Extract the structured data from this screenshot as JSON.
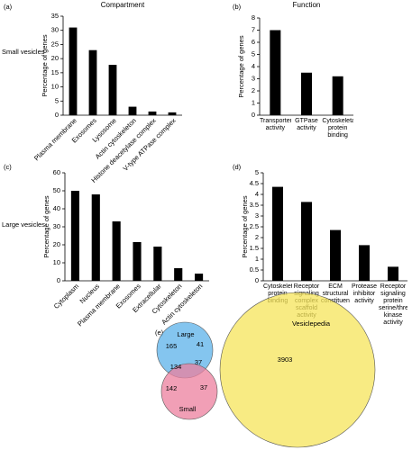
{
  "chart_data": [
    {
      "type": "bar",
      "panel": "(a)",
      "title": "Compartment",
      "row_label": "Small vesicles",
      "y_label": "Percentage of genes",
      "categories": [
        "Plasma membrane",
        "Exosomes",
        "Lysosome",
        "Actin cytoskeleton",
        "Histone deacetylase complex",
        "V-type ATPase complex"
      ],
      "values": [
        31,
        23,
        17.8,
        3,
        1.3,
        1
      ],
      "color": "#000000",
      "ylim": [
        0,
        35
      ],
      "yticks": [
        0,
        5,
        10,
        15,
        20,
        25,
        30,
        35
      ]
    },
    {
      "type": "bar",
      "panel": "(b)",
      "title": "Function",
      "y_label": "Percentage of genes",
      "categories": [
        "Transporter activity",
        "GTPase activity",
        "Cytoskeletal protein binding"
      ],
      "values": [
        7,
        3.5,
        3.2
      ],
      "color": "#000000",
      "ylim": [
        0,
        8
      ],
      "yticks": [
        0,
        1,
        2,
        3,
        4,
        5,
        6,
        7,
        8
      ]
    },
    {
      "type": "bar",
      "panel": "(c)",
      "row_label": "Large vesicles",
      "y_label": "Percentage of genes",
      "categories": [
        "Cytoplasm",
        "Nucleus",
        "Plasma membrane",
        "Exosomes",
        "Extracellular",
        "Cytoskeleton",
        "Actin cytoskeleton"
      ],
      "values": [
        50,
        48,
        33,
        21.5,
        19,
        7,
        4
      ],
      "color": "#000000",
      "ylim": [
        0,
        60
      ],
      "yticks": [
        0,
        10,
        20,
        30,
        40,
        50,
        60
      ]
    },
    {
      "type": "bar",
      "panel": "(d)",
      "y_label": "Percentage of genes",
      "categories": [
        "Cytoskeletal protein binding",
        "Receptor signaling complex scaffold activity",
        "ECM structural constituent",
        "Protease inhibitor activity",
        "Receptor signaling protein serine/threonine kinase activity"
      ],
      "values": [
        4.35,
        3.65,
        2.35,
        1.65,
        0.65
      ],
      "color": "#000000",
      "ylim": [
        0,
        5
      ],
      "yticks": [
        0,
        0.5,
        1,
        1.5,
        2,
        2.5,
        3,
        3.5,
        4,
        4.5,
        5
      ]
    },
    {
      "type": "venn",
      "panel": "(e)",
      "sets": [
        {
          "name": "Large",
          "color": "#5bb2ea"
        },
        {
          "name": "Small",
          "color": "#ec7f9e"
        },
        {
          "name": "Vesiclepedia",
          "color": "#f6e45a"
        }
      ],
      "regions": [
        {
          "value": 165
        },
        {
          "value": 41
        },
        {
          "value": 134
        },
        {
          "value": 37
        },
        {
          "value": 142
        },
        {
          "value": 37
        },
        {
          "value": 3903
        }
      ]
    }
  ]
}
